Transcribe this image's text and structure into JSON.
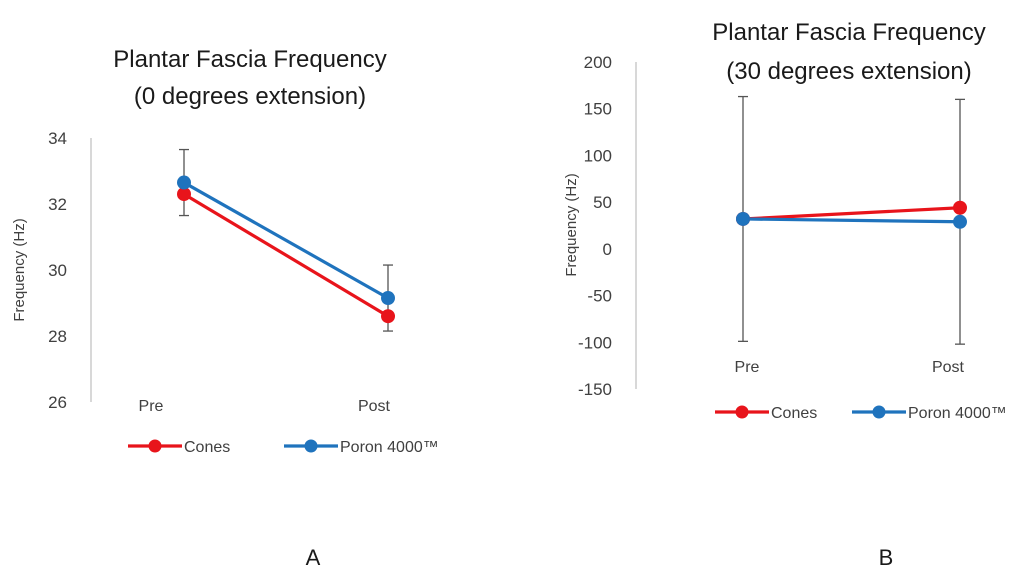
{
  "chart_data": [
    {
      "type": "line",
      "panel_label": "A",
      "title": "Plantar Fascia Frequency",
      "subtitle": "(0 degrees extension)",
      "ylabel": "Frequency (Hz)",
      "xlabel": "",
      "categories": [
        "Pre",
        "Post"
      ],
      "ylim": [
        26,
        34
      ],
      "yticks": [
        26,
        28,
        30,
        32,
        34
      ],
      "grid": false,
      "legend": "bottom",
      "series": [
        {
          "name": "Cones",
          "color": "#e8141b",
          "values": [
            32.3,
            28.6
          ]
        },
        {
          "name": "Poron 4000™",
          "color": "#1f73bd",
          "values": [
            32.65,
            29.15
          ],
          "error": [
            1.0,
            1.0
          ]
        }
      ]
    },
    {
      "type": "line",
      "panel_label": "B",
      "title": "Plantar Fascia Frequency",
      "subtitle": "(30 degrees extension)",
      "ylabel": "Frequency (Hz)",
      "xlabel": "",
      "categories": [
        "Pre",
        "Post"
      ],
      "ylim": [
        -150,
        200
      ],
      "yticks": [
        -150,
        -100,
        -50,
        0,
        50,
        100,
        150,
        200
      ],
      "grid": false,
      "legend": "bottom",
      "series": [
        {
          "name": "Cones",
          "color": "#e8141b",
          "values": [
            32,
            44
          ]
        },
        {
          "name": "Poron 4000™",
          "color": "#1f73bd",
          "values": [
            32,
            29
          ],
          "error": [
            131,
            131
          ]
        }
      ]
    }
  ]
}
